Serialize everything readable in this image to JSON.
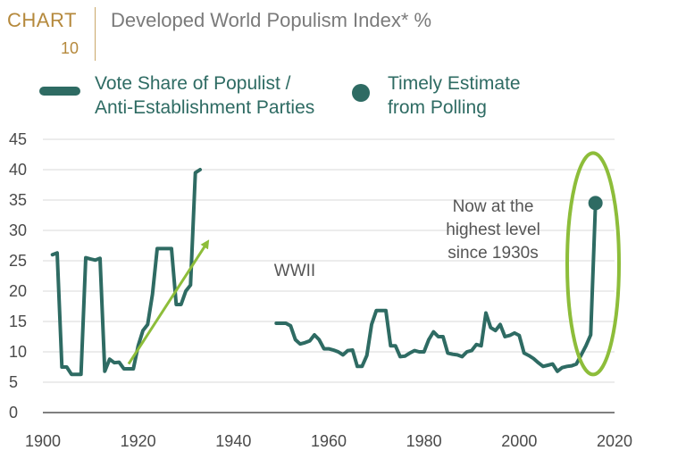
{
  "header": {
    "chart_label": "CHART",
    "chart_number": "10",
    "title": "Developed World Populism Index* %"
  },
  "legend": {
    "line_label_1": "Vote Share of Populist /",
    "line_label_2": "Anti-Establishment Parties",
    "dot_label_1": "Timely Estimate",
    "dot_label_2": "from Polling"
  },
  "colors": {
    "series": "#2e6b63",
    "highlight": "#8dbd3a",
    "grid": "#d9d9d9",
    "accent": "#b5893c"
  },
  "annotations": {
    "wwii": "WWII",
    "note_line1": "Now at the",
    "note_line2": "highest level",
    "note_line3": "since 1930s"
  },
  "chart_data": {
    "type": "line",
    "title": "Developed World Populism Index* %",
    "xlabel": "",
    "ylabel": "",
    "xlim": [
      1900,
      2020
    ],
    "ylim": [
      0,
      45
    ],
    "x_ticks": [
      1900,
      1920,
      1940,
      1960,
      1980,
      2000,
      2020
    ],
    "y_ticks": [
      0,
      5,
      10,
      15,
      20,
      25,
      30,
      35,
      40,
      45
    ],
    "grid": true,
    "series": [
      {
        "name": "Vote Share of Populist / Anti-Establishment Parties",
        "segments": [
          [
            [
              1902,
              26
            ],
            [
              1903,
              26.3
            ],
            [
              1904,
              7.5
            ],
            [
              1905,
              7.5
            ],
            [
              1906,
              6.3
            ],
            [
              1907,
              6.3
            ],
            [
              1908,
              6.3
            ],
            [
              1909,
              25.5
            ],
            [
              1910,
              25.3
            ],
            [
              1911,
              25.1
            ],
            [
              1912,
              25.4
            ],
            [
              1913,
              6.8
            ],
            [
              1914,
              8.8
            ],
            [
              1915,
              8.2
            ],
            [
              1916,
              8.3
            ],
            [
              1917,
              7.2
            ],
            [
              1918,
              7.2
            ],
            [
              1919,
              7.2
            ],
            [
              1920,
              11
            ],
            [
              1921,
              13.5
            ],
            [
              1922,
              14.5
            ],
            [
              1923,
              19.5
            ],
            [
              1924,
              27
            ],
            [
              1925,
              27
            ],
            [
              1926,
              27
            ],
            [
              1927,
              27
            ],
            [
              1928,
              17.8
            ],
            [
              1929,
              17.8
            ],
            [
              1930,
              20
            ],
            [
              1931,
              21
            ],
            [
              1932,
              39.5
            ],
            [
              1933,
              40
            ]
          ],
          [
            [
              1949,
              14.7
            ],
            [
              1951,
              14.7
            ],
            [
              1952,
              14.3
            ],
            [
              1953,
              12
            ],
            [
              1954,
              11.3
            ],
            [
              1955,
              11.5
            ],
            [
              1956,
              11.8
            ],
            [
              1957,
              12.8
            ],
            [
              1958,
              12
            ],
            [
              1959,
              10.5
            ],
            [
              1960,
              10.5
            ],
            [
              1961,
              10.3
            ],
            [
              1962,
              10
            ],
            [
              1963,
              9.5
            ],
            [
              1964,
              10.2
            ],
            [
              1965,
              10.3
            ],
            [
              1966,
              7.6
            ],
            [
              1967,
              7.6
            ],
            [
              1968,
              9.4
            ],
            [
              1969,
              14.5
            ],
            [
              1970,
              16.8
            ],
            [
              1971,
              16.8
            ],
            [
              1972,
              16.8
            ],
            [
              1973,
              11
            ],
            [
              1974,
              11
            ],
            [
              1975,
              9.2
            ],
            [
              1976,
              9.3
            ],
            [
              1977,
              9.8
            ],
            [
              1978,
              10.2
            ],
            [
              1979,
              10
            ],
            [
              1980,
              10
            ],
            [
              1981,
              12
            ],
            [
              1982,
              13.3
            ],
            [
              1983,
              12.5
            ],
            [
              1984,
              12.5
            ],
            [
              1985,
              9.8
            ],
            [
              1986,
              9.6
            ],
            [
              1987,
              9.5
            ],
            [
              1988,
              9.2
            ],
            [
              1989,
              10
            ],
            [
              1990,
              10.2
            ],
            [
              1991,
              11.2
            ],
            [
              1992,
              11
            ],
            [
              1993,
              16.4
            ],
            [
              1994,
              14
            ],
            [
              1995,
              13.5
            ],
            [
              1996,
              14.5
            ],
            [
              1997,
              12.5
            ],
            [
              1998,
              12.7
            ],
            [
              1999,
              13.1
            ],
            [
              2000,
              12.7
            ],
            [
              2001,
              9.8
            ],
            [
              2002,
              9.4
            ],
            [
              2003,
              8.9
            ],
            [
              2004,
              8.2
            ],
            [
              2005,
              7.6
            ],
            [
              2006,
              7.8
            ],
            [
              2007,
              8.0
            ],
            [
              2008,
              6.8
            ],
            [
              2009,
              7.4
            ],
            [
              2010,
              7.6
            ],
            [
              2011,
              7.7
            ],
            [
              2012,
              8
            ],
            [
              2013,
              9.5
            ],
            [
              2014,
              11
            ],
            [
              2015,
              12.8
            ],
            [
              2016,
              34.5
            ]
          ]
        ]
      },
      {
        "name": "Timely Estimate from Polling",
        "points": [
          [
            2016,
            34.5
          ]
        ]
      }
    ],
    "annotations": [
      {
        "text": "WWII",
        "arrow_from": [
          1918,
          8
        ],
        "arrow_to": [
          1934.5,
          28
        ]
      },
      {
        "text": "Now at the highest level since 1930s",
        "highlight_ellipse_center": [
          2015.5,
          24.5
        ]
      }
    ]
  }
}
